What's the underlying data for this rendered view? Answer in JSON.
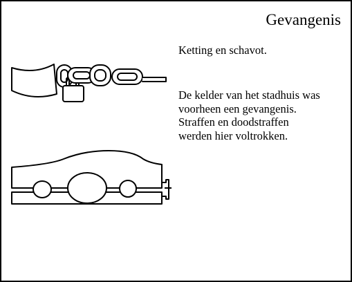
{
  "page": {
    "title": "Gevangenis",
    "caption": "Ketting en schavot.",
    "description_lines": [
      "De kelder van het stadhuis was",
      "voorheen een gevangenis.",
      "Straffen en doodstraffen",
      "werden hier voltrokken."
    ]
  },
  "icons": {
    "chain": "chain-with-padlock-icon",
    "stocks": "stocks-pillory-icon"
  },
  "colors": {
    "ink": "#000000",
    "paper": "#ffffff"
  }
}
